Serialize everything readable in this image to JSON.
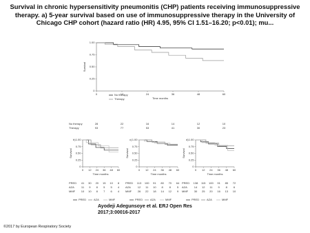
{
  "title": "Survival in chronic hypersensitivity pneumonitis (CHP) patients receiving immunosuppressive therapy. a) 5-year survival based on use of immunosuppressive therapy in the University of Chicago CHP cohort (hazard ratio (HR) 4.95, 95% CI 1.51–16.20; p<0.01); mu...",
  "figure": {
    "panels": [
      {
        "type": "line",
        "ylabel": "Survival",
        "xlabel": "Time months",
        "xlim": [
          0,
          60
        ],
        "ylim": [
          0,
          1
        ],
        "xticks": [
          0,
          12,
          24,
          36,
          48,
          60
        ],
        "yticks": [
          0,
          0.25,
          {
            "value": 0.5,
            "label": "0.50"
          },
          {
            "value": 0.75,
            "label": "0.75"
          },
          {
            "value": 1,
            "label": "1.00"
          }
        ],
        "series": [
          {
            "name": "No therapy",
            "color": "#222222",
            "x": [
              0,
              8,
              8,
              20,
              20,
              30,
              30,
              45,
              45,
              60
            ],
            "values": [
              1,
              1,
              0.96,
              0.96,
              0.92,
              0.92,
              0.89,
              0.89,
              0.87,
              0.87
            ]
          },
          {
            "name": "Therapy",
            "color": "#999999",
            "x": [
              0,
              4,
              4,
              10,
              10,
              18,
              18,
              26,
              26,
              34,
              34,
              42,
              42,
              50,
              50,
              60
            ],
            "values": [
              1,
              1,
              0.97,
              0.97,
              0.92,
              0.92,
              0.85,
              0.85,
              0.8,
              0.8,
              0.74,
              0.74,
              0.68,
              0.68,
              0.63,
              0.63
            ]
          }
        ],
        "risk_table": [
          {
            "name": "No therapy",
            "values": [
              28,
              22,
              16,
              14,
              12,
              10
            ]
          },
          {
            "name": "Therapy",
            "values": [
              93,
              77,
              53,
              41,
              30,
              23
            ]
          }
        ]
      },
      {
        "type": "line",
        "label": "b)",
        "ylabel": "Survival",
        "xlabel": "Time months",
        "xlim": [
          0,
          60
        ],
        "ylim": [
          0,
          1
        ],
        "xticks": [
          0,
          12,
          24,
          36,
          48,
          60
        ],
        "yticks": [
          0,
          0.25,
          {
            "value": 0.5,
            "label": "0.50"
          },
          {
            "value": 0.75,
            "label": "0.75"
          },
          {
            "value": 1,
            "label": "1.00"
          }
        ],
        "series": [
          {
            "name": "PRED",
            "color": "#333333",
            "x": [
              0,
              10,
              10,
              22,
              22,
              36,
              36,
              60
            ],
            "values": [
              1,
              1,
              0.85,
              0.85,
              0.72,
              0.72,
              0.62,
              0.62
            ]
          },
          {
            "name": "AZA",
            "color": "#888888",
            "x": [
              0,
              14,
              14,
              30,
              30,
              60
            ],
            "values": [
              1,
              1,
              0.82,
              0.82,
              0.7,
              0.7
            ]
          },
          {
            "name": "MMF",
            "color": "#bbbbbb",
            "x": [
              0,
              6,
              6,
              26,
              26,
              44,
              44,
              60
            ],
            "values": [
              1,
              1,
              0.9,
              0.9,
              0.78,
              0.78,
              0.55,
              0.55
            ]
          }
        ],
        "risk_table": [
          {
            "name": "PRED",
            "values": [
              41,
              30,
              20,
              15,
              10,
              8
            ]
          },
          {
            "name": "AZA",
            "values": [
              11,
              9,
              8,
              5,
              5,
              4
            ]
          },
          {
            "name": "MMF",
            "values": [
              10,
              10,
              8,
              7,
              6,
              4
            ]
          }
        ]
      },
      {
        "type": "line",
        "label": "c)",
        "ylabel": "Survival",
        "xlabel": "Time months",
        "xlim": [
          0,
          60
        ],
        "ylim": [
          0,
          1
        ],
        "xticks": [
          0,
          12,
          24,
          36,
          48,
          60
        ],
        "yticks": [
          0,
          0.25,
          {
            "value": 0.5,
            "label": "0.50"
          },
          {
            "value": 0.75,
            "label": "0.75"
          },
          {
            "value": 1,
            "label": "1.00"
          }
        ],
        "series": [
          {
            "name": "PRED",
            "color": "#333333",
            "x": [
              0,
              12,
              12,
              28,
              28,
              44,
              44,
              60
            ],
            "values": [
              1,
              1,
              0.94,
              0.94,
              0.87,
              0.87,
              0.8,
              0.8
            ]
          },
          {
            "name": "AZA",
            "color": "#888888",
            "x": [
              0,
              20,
              20,
              40,
              40,
              60
            ],
            "values": [
              1,
              1,
              0.92,
              0.92,
              0.84,
              0.84
            ]
          },
          {
            "name": "MMF",
            "color": "#bbbbbb",
            "x": [
              0,
              8,
              8,
              24,
              24,
              48,
              48,
              60
            ],
            "values": [
              1,
              1,
              0.95,
              0.95,
              0.88,
              0.88,
              0.82,
              0.82
            ]
          }
        ],
        "risk_table": [
          {
            "name": "PRED",
            "values": [
              113,
              100,
              91,
              80,
              70,
              64
            ]
          },
          {
            "name": "AZA",
            "values": [
              12,
              11,
              10,
              8,
              8,
              5
            ]
          },
          {
            "name": "MMF",
            "values": [
              26,
              22,
              18,
              14,
              12,
              9
            ]
          }
        ]
      },
      {
        "type": "line",
        "label": "d)",
        "ylabel": "Survival",
        "xlabel": "Time months",
        "xlim": [
          0,
          60
        ],
        "ylim": [
          0,
          1
        ],
        "xticks": [
          0,
          12,
          24,
          36,
          48,
          60
        ],
        "yticks": [
          0,
          0.25,
          {
            "value": 0.5,
            "label": "0.50"
          },
          {
            "value": 0.75,
            "label": "0.75"
          },
          {
            "value": 1,
            "label": "1.00"
          }
        ],
        "series": [
          {
            "name": "PRED",
            "color": "#333333",
            "x": [
              0,
              8,
              8,
              20,
              20,
              34,
              34,
              48,
              48,
              60
            ],
            "values": [
              1,
              1,
              0.93,
              0.93,
              0.85,
              0.85,
              0.76,
              0.76,
              0.68,
              0.68
            ]
          },
          {
            "name": "AZA",
            "color": "#888888",
            "x": [
              0,
              16,
              16,
              36,
              36,
              60
            ],
            "values": [
              1,
              1,
              0.88,
              0.88,
              0.78,
              0.78
            ]
          },
          {
            "name": "MMF",
            "color": "#bbbbbb",
            "x": [
              0,
              10,
              10,
              30,
              30,
              50,
              50,
              60
            ],
            "values": [
              1,
              1,
              0.9,
              0.9,
              0.8,
              0.8,
              0.6,
              0.6
            ]
          }
        ],
        "risk_table": [
          {
            "name": "PRED",
            "values": [
              138,
              115,
              100,
              91,
              85,
              72
            ]
          },
          {
            "name": "AZA",
            "values": [
              14,
              12,
              11,
              9,
              8,
              6
            ]
          },
          {
            "name": "MMF",
            "values": [
              30,
              25,
              20,
              16,
              13,
              10
            ]
          }
        ]
      }
    ]
  },
  "citation": "Ayodeji Adegunsoye et al. ERJ Open Res 2017;3:00016-2017",
  "copyright": "©2017 by European Respiratory Society"
}
